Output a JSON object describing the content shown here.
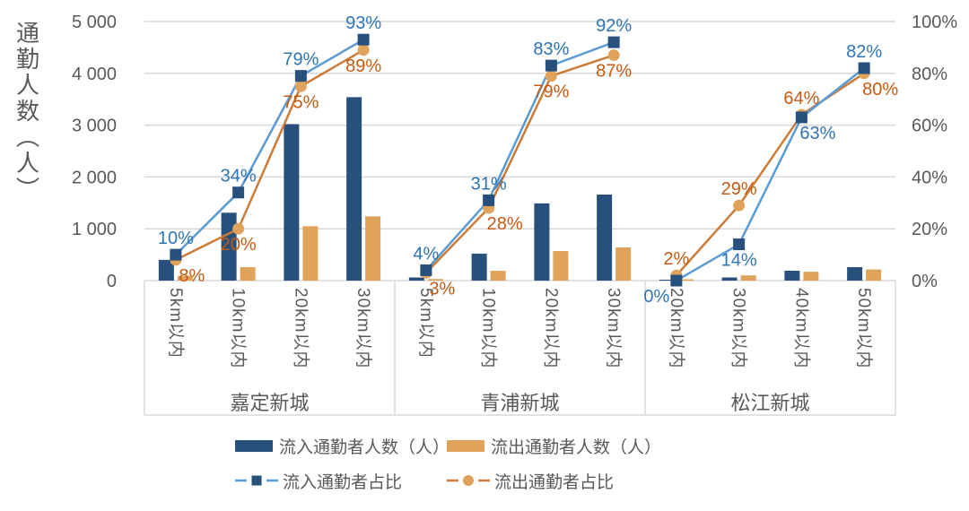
{
  "chart_data": {
    "type": "bar",
    "subtype": "combo-bar-line-dual-axis",
    "title": "",
    "grid": true,
    "legend_position": "bottom",
    "y_left": {
      "label": "通勤人数（人）",
      "ticks": [
        "5 000",
        "4 000",
        "3 000",
        "2 000",
        "1 000",
        "0"
      ],
      "min": 0,
      "max": 5000
    },
    "y_right": {
      "ticks": [
        "100%",
        "80%",
        "60%",
        "40%",
        "20%",
        "0%"
      ],
      "min": 0,
      "max": 100,
      "unit": "%"
    },
    "groups": [
      {
        "name": "嘉定新城",
        "categories": [
          "5km以内",
          "10km以内",
          "20km以内",
          "30km以内"
        ],
        "inflow_count": [
          400,
          1310,
          3020,
          3540
        ],
        "outflow_count": [
          90,
          260,
          1050,
          1240
        ],
        "inflow_pct": [
          10,
          34,
          79,
          93
        ],
        "outflow_pct": [
          8,
          20,
          75,
          89
        ]
      },
      {
        "name": "青浦新城",
        "categories": [
          "5km以内",
          "10km以内",
          "20km以内",
          "30km以内"
        ],
        "inflow_count": [
          60,
          520,
          1490,
          1660
        ],
        "outflow_count": [
          30,
          190,
          570,
          640
        ],
        "inflow_pct": [
          4,
          31,
          83,
          92
        ],
        "outflow_pct": [
          3,
          28,
          79,
          87
        ]
      },
      {
        "name": "松江新城",
        "categories": [
          "20km以内",
          "30km以内",
          "40km以内",
          "50km以内"
        ],
        "inflow_count": [
          15,
          60,
          190,
          260
        ],
        "outflow_count": [
          25,
          100,
          170,
          215
        ],
        "inflow_pct": [
          0,
          14,
          63,
          82
        ],
        "outflow_pct": [
          2,
          29,
          64,
          80
        ]
      }
    ],
    "legend": [
      {
        "label": "流入通勤者人数（人）",
        "type": "bar",
        "color": "#27507C"
      },
      {
        "label": "流出通勤者人数（人）",
        "type": "bar",
        "color": "#DFA35C"
      },
      {
        "label": "流入通勤者占比",
        "type": "line-square",
        "line_color": "#5B9BD5",
        "marker_color": "#27507C"
      },
      {
        "label": "流出通勤者占比",
        "type": "line-circle",
        "line_color": "#CC7B38",
        "marker_color": "#DFA35C"
      }
    ],
    "colors": {
      "inflow_bar": "#27507C",
      "outflow_bar": "#DFA35C",
      "inflow_line": "#5B9BD5",
      "inflow_marker": "#27507C",
      "outflow_line": "#CC7B38",
      "outflow_marker": "#DFA35C",
      "inflow_label": "#2E74B5",
      "outflow_label": "#C55A11",
      "axis_text": "#595959",
      "gridline": "#D9D9D9",
      "background": "#FFFFFF"
    }
  }
}
